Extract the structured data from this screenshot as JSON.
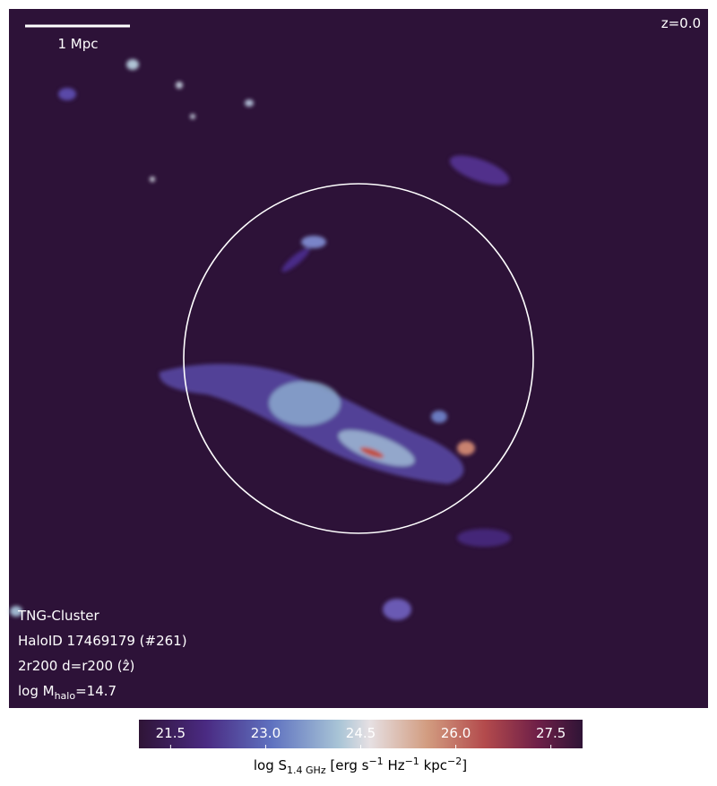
{
  "panel": {
    "scale_bar": "1 Mpc",
    "redshift": "z=0.0",
    "simulation": "TNG-Cluster",
    "halo_id": "HaloID 17469179 (#261)",
    "projection": "2r200 d=r200 (ẑ)",
    "mass": {
      "prefix": "log M",
      "sub": "halo",
      "suffix": "=14.7"
    }
  },
  "colorbar": {
    "label": [
      {
        "text": "log S",
        "style": "normal"
      },
      {
        "text": "1.4 GHz",
        "style": "sub"
      },
      {
        "text": " [erg s",
        "style": "normal"
      },
      {
        "text": "−1",
        "style": "sup"
      },
      {
        "text": " Hz",
        "style": "normal"
      },
      {
        "text": "−1",
        "style": "sup"
      },
      {
        "text": " kpc",
        "style": "normal"
      },
      {
        "text": "−2",
        "style": "sup"
      },
      {
        "text": "]",
        "style": "normal"
      }
    ],
    "lim": [
      21,
      28
    ],
    "ticks": [
      21.5,
      {
        "value": 23,
        "label": "23.0"
      },
      24.5,
      {
        "value": 26,
        "label": "26.0"
      },
      27.5
    ]
  }
}
